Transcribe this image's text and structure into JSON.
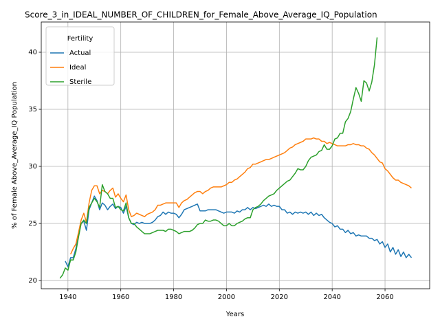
{
  "chart_data": {
    "type": "line",
    "title": "Score_3_in_IDEAL_NUMBER_OF_CHILDREN_for_Female_Above_Average_IQ_Population",
    "xlabel": "Years",
    "ylabel": "% of Female Above_Average_IQ Population",
    "legend_title": "Fertility",
    "legend": "upper left",
    "grid": true,
    "xlim": [
      1929.9,
      2076.9
    ],
    "ylim": [
      19.28,
      42.65
    ],
    "xticks": [
      1940,
      1960,
      1980,
      2000,
      2020,
      2040,
      2060
    ],
    "yticks": [
      20,
      25,
      30,
      35,
      40
    ],
    "x": [
      1937,
      1938,
      1939,
      1940,
      1941,
      1942,
      1943,
      1944,
      1945,
      1946,
      1947,
      1948,
      1949,
      1950,
      1951,
      1952,
      1953,
      1954,
      1955,
      1956,
      1957,
      1958,
      1959,
      1960,
      1961,
      1962,
      1963,
      1964,
      1965,
      1966,
      1967,
      1968,
      1969,
      1970,
      1971,
      1972,
      1973,
      1974,
      1975,
      1976,
      1977,
      1978,
      1979,
      1980,
      1981,
      1982,
      1983,
      1984,
      1985,
      1986,
      1987,
      1988,
      1989,
      1990,
      1991,
      1992,
      1993,
      1994,
      1995,
      1996,
      1997,
      1998,
      1999,
      2000,
      2001,
      2002,
      2003,
      2004,
      2005,
      2006,
      2007,
      2008,
      2009,
      2010,
      2011,
      2012,
      2013,
      2014,
      2015,
      2016,
      2017,
      2018,
      2019,
      2020,
      2021,
      2022,
      2023,
      2024,
      2025,
      2026,
      2027,
      2028,
      2029,
      2030,
      2031,
      2032,
      2033,
      2034,
      2035,
      2036,
      2037,
      2038,
      2039,
      2040,
      2041,
      2042,
      2043,
      2044,
      2045,
      2046,
      2047,
      2048,
      2049,
      2050,
      2051,
      2052,
      2053,
      2054,
      2055,
      2056,
      2057,
      2058,
      2059,
      2060,
      2061,
      2062,
      2063,
      2064,
      2065,
      2066,
      2067,
      2068,
      2069,
      2070
    ],
    "series": [
      {
        "name": "Actual",
        "color": "#1f77b4",
        "values": [
          null,
          null,
          21.7,
          21.2,
          22.0,
          22.0,
          22.8,
          24.0,
          25.0,
          25.2,
          24.4,
          26.2,
          26.8,
          27.4,
          27.0,
          26.2,
          26.8,
          26.6,
          26.2,
          26.5,
          26.7,
          26.3,
          26.5,
          26.4,
          25.9,
          26.5,
          25.5,
          25.0,
          24.9,
          25.1,
          25.0,
          25.1,
          25.0,
          25.0,
          25.0,
          25.1,
          25.3,
          25.6,
          25.7,
          26.0,
          25.8,
          26.0,
          25.9,
          25.9,
          25.8,
          25.5,
          25.8,
          26.2,
          26.3,
          26.4,
          26.5,
          26.6,
          26.7,
          26.1,
          26.1,
          26.1,
          26.2,
          26.2,
          26.2,
          26.2,
          26.1,
          26.0,
          25.9,
          26.0,
          26.0,
          26.0,
          25.9,
          26.1,
          26.0,
          26.2,
          26.2,
          26.4,
          26.2,
          26.4,
          26.3,
          26.4,
          26.5,
          26.6,
          26.5,
          26.7,
          26.5,
          26.6,
          26.5,
          26.5,
          26.2,
          26.2,
          25.9,
          26.0,
          25.8,
          26.0,
          25.9,
          26.0,
          25.9,
          26.0,
          25.8,
          26.0,
          25.7,
          25.9,
          25.7,
          25.8,
          25.5,
          25.3,
          25.1,
          25.0,
          24.7,
          24.8,
          24.5,
          24.5,
          24.2,
          24.4,
          24.1,
          24.2,
          23.9,
          24.0,
          23.9,
          23.9,
          23.9,
          23.7,
          23.7,
          23.5,
          23.6,
          23.2,
          23.4,
          22.9,
          23.2,
          22.5,
          22.9,
          22.3,
          22.7,
          22.1,
          22.5,
          22.0,
          22.3,
          22.0
        ]
      },
      {
        "name": "Ideal",
        "color": "#ff7f0e",
        "values": [
          null,
          null,
          null,
          null,
          22.3,
          22.8,
          23.2,
          24.2,
          25.3,
          25.9,
          25.1,
          26.8,
          27.9,
          28.3,
          28.3,
          27.6,
          27.9,
          27.8,
          27.6,
          27.9,
          28.1,
          27.3,
          27.6,
          27.2,
          26.9,
          27.5,
          26.2,
          25.6,
          25.7,
          25.9,
          25.8,
          25.7,
          25.6,
          25.8,
          25.9,
          26.0,
          26.2,
          26.6,
          26.6,
          26.7,
          26.8,
          26.8,
          26.8,
          26.8,
          26.8,
          26.4,
          26.8,
          27.0,
          27.1,
          27.3,
          27.5,
          27.7,
          27.8,
          27.8,
          27.6,
          27.8,
          27.9,
          28.1,
          28.2,
          28.2,
          28.2,
          28.2,
          28.3,
          28.4,
          28.6,
          28.6,
          28.8,
          28.9,
          29.1,
          29.3,
          29.5,
          29.8,
          29.9,
          30.2,
          30.2,
          30.3,
          30.4,
          30.5,
          30.6,
          30.6,
          30.7,
          30.8,
          30.9,
          31.0,
          31.1,
          31.2,
          31.4,
          31.6,
          31.7,
          31.9,
          32.0,
          32.1,
          32.2,
          32.4,
          32.4,
          32.4,
          32.5,
          32.4,
          32.4,
          32.2,
          32.2,
          32.0,
          32.1,
          32.0,
          31.9,
          31.8,
          31.8,
          31.8,
          31.8,
          31.9,
          31.9,
          32.0,
          31.9,
          31.9,
          31.8,
          31.8,
          31.6,
          31.5,
          31.2,
          31.0,
          30.7,
          30.4,
          30.3,
          29.8,
          29.6,
          29.3,
          29.0,
          28.8,
          28.8,
          28.6,
          28.5,
          28.4,
          28.3,
          28.1
        ]
      },
      {
        "name": "Sterile",
        "color": "#2ca02c",
        "values": [
          20.2,
          20.5,
          21.1,
          20.9,
          21.8,
          21.8,
          22.5,
          23.8,
          25.0,
          25.3,
          25.0,
          26.4,
          26.8,
          27.2,
          26.9,
          26.4,
          28.4,
          27.8,
          27.6,
          27.2,
          27.2,
          26.4,
          26.5,
          26.2,
          26.1,
          26.8,
          25.5,
          25.0,
          25.0,
          24.7,
          24.5,
          24.3,
          24.1,
          24.1,
          24.1,
          24.2,
          24.3,
          24.4,
          24.4,
          24.4,
          24.3,
          24.5,
          24.5,
          24.4,
          24.3,
          24.1,
          24.2,
          24.3,
          24.3,
          24.3,
          24.4,
          24.6,
          24.9,
          25.0,
          25.0,
          25.3,
          25.2,
          25.2,
          25.3,
          25.3,
          25.2,
          25.0,
          24.8,
          24.8,
          25.0,
          24.8,
          24.8,
          25.0,
          25.1,
          25.2,
          25.4,
          25.5,
          25.5,
          26.2,
          26.4,
          26.5,
          26.7,
          27.0,
          27.2,
          27.4,
          27.5,
          27.6,
          27.9,
          28.1,
          28.3,
          28.5,
          28.7,
          28.8,
          29.1,
          29.4,
          29.8,
          29.7,
          29.7,
          30.0,
          30.5,
          30.8,
          30.9,
          31.0,
          31.3,
          31.4,
          31.9,
          31.5,
          31.5,
          31.8,
          32.4,
          32.5,
          32.9,
          32.9,
          33.9,
          34.2,
          34.8,
          35.9,
          36.9,
          36.4,
          35.7,
          37.5,
          37.3,
          36.6,
          37.4,
          38.9,
          41.3,
          null,
          null,
          null,
          null,
          null,
          null,
          null,
          null,
          null,
          null,
          null,
          null,
          null
        ]
      }
    ]
  }
}
